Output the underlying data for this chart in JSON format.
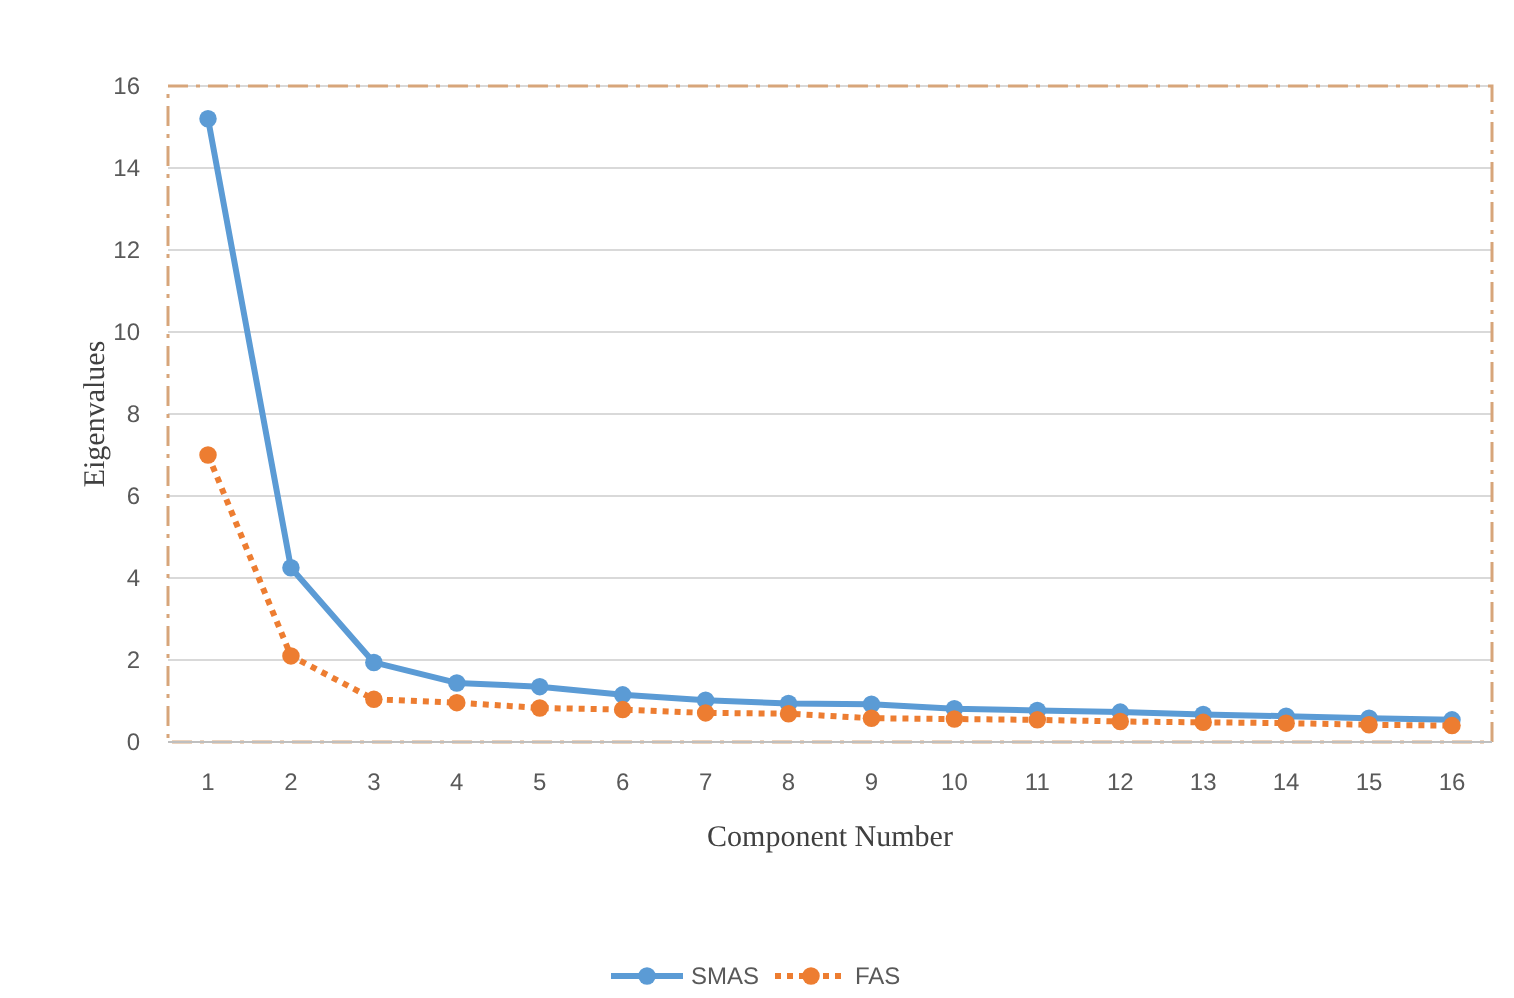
{
  "chart_data": {
    "type": "line",
    "xlabel": "Component Number",
    "ylabel": "Eigenvalues",
    "categories": [
      "1",
      "2",
      "3",
      "4",
      "5",
      "6",
      "7",
      "8",
      "9",
      "10",
      "11",
      "12",
      "13",
      "14",
      "15",
      "16"
    ],
    "series": [
      {
        "name": "SMAS",
        "color": "#5b9bd5",
        "line_style": "solid",
        "values": [
          15.2,
          4.25,
          1.94,
          1.44,
          1.35,
          1.15,
          1.02,
          0.94,
          0.92,
          0.81,
          0.77,
          0.73,
          0.67,
          0.63,
          0.58,
          0.54
        ]
      },
      {
        "name": "FAS",
        "color": "#ed7d31",
        "line_style": "dotted",
        "values": [
          7.0,
          2.1,
          1.04,
          0.96,
          0.83,
          0.79,
          0.71,
          0.69,
          0.58,
          0.56,
          0.54,
          0.5,
          0.48,
          0.46,
          0.42,
          0.4
        ]
      }
    ],
    "ylim": [
      0,
      16
    ],
    "yticks": [
      0,
      2,
      4,
      6,
      8,
      10,
      12,
      14,
      16
    ],
    "grid": "y",
    "marker": "circle",
    "legend": "bottom"
  }
}
